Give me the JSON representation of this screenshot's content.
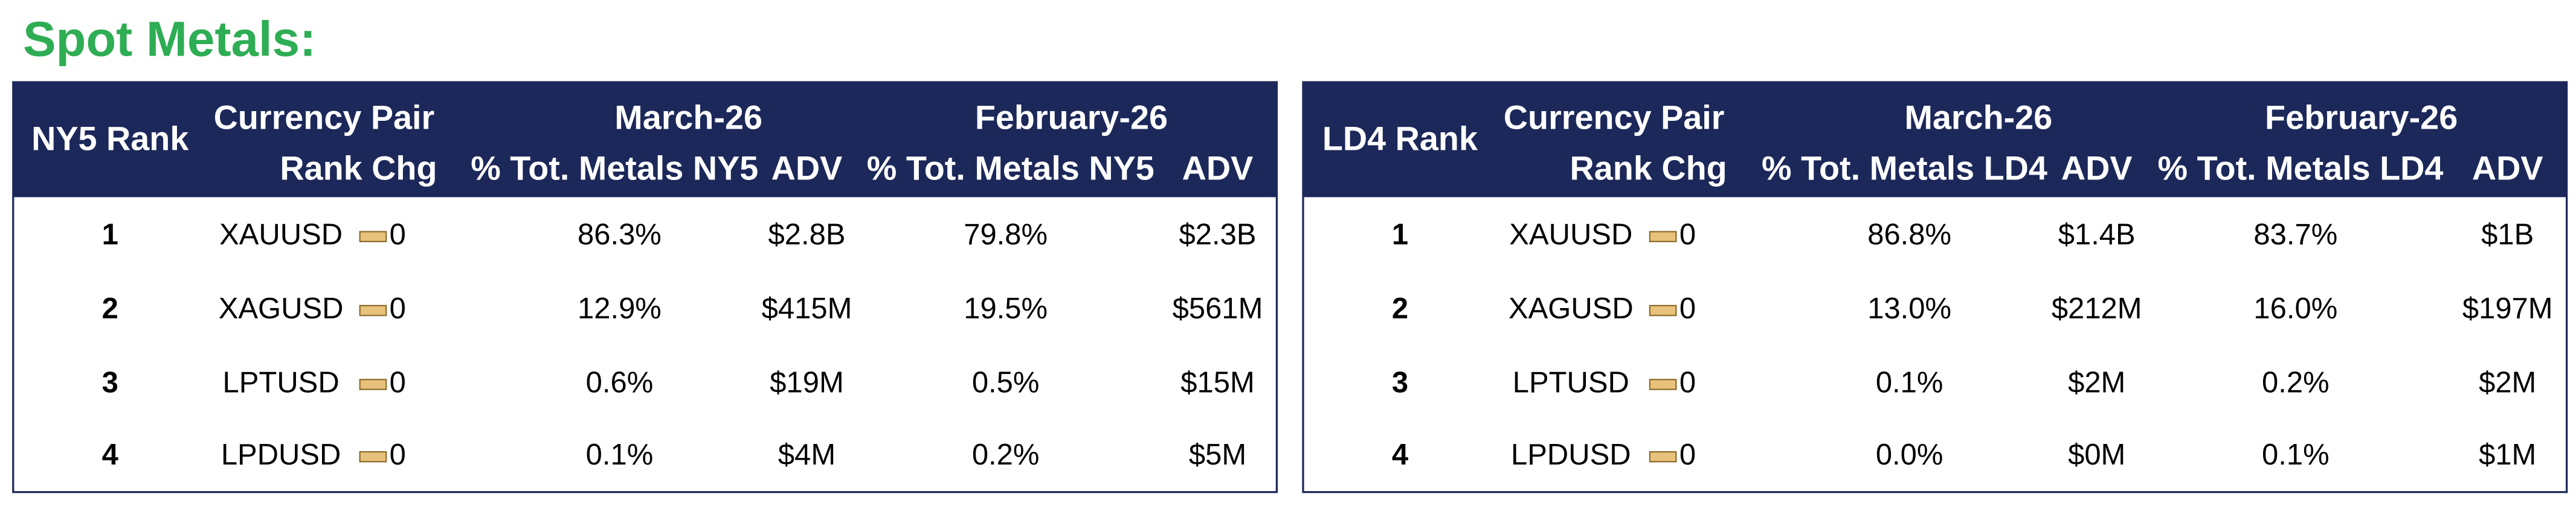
{
  "title": "Spot Metals:",
  "tables": [
    {
      "headers": {
        "rank": "NY5 Rank",
        "pair": "Currency Pair",
        "rank_chg": "Rank Chg",
        "period1": "March-26",
        "period2": "February-26",
        "share1": "% Tot. Metals NY5",
        "adv1": "ADV",
        "share2": "% Tot. Metals NY5",
        "adv2": "ADV"
      },
      "rows": [
        [
          "1",
          "XAUUSD",
          "0",
          "86.3%",
          "$2.8B",
          "79.8%",
          "$2.3B"
        ],
        [
          "2",
          "XAGUSD",
          "0",
          "12.9%",
          "$415M",
          "19.5%",
          "$561M"
        ],
        [
          "3",
          "LPTUSD",
          "0",
          "0.6%",
          "$19M",
          "0.5%",
          "$15M"
        ],
        [
          "4",
          "LPDUSD",
          "0",
          "0.1%",
          "$4M",
          "0.2%",
          "$5M"
        ]
      ]
    },
    {
      "headers": {
        "rank": "LD4 Rank",
        "pair": "Currency Pair",
        "rank_chg": "Rank Chg",
        "period1": "March-26",
        "period2": "February-26",
        "share1": "% Tot. Metals LD4",
        "adv1": "ADV",
        "share2": "% Tot. Metals LD4",
        "adv2": "ADV"
      },
      "rows": [
        [
          "1",
          "XAUUSD",
          "0",
          "86.8%",
          "$1.4B",
          "83.7%",
          "$1B"
        ],
        [
          "2",
          "XAGUSD",
          "0",
          "13.0%",
          "$212M",
          "16.0%",
          "$197M"
        ],
        [
          "3",
          "LPTUSD",
          "0",
          "0.1%",
          "$2M",
          "0.2%",
          "$2M"
        ],
        [
          "4",
          "LPDUSD",
          "0",
          "0.0%",
          "$0M",
          "0.1%",
          "$1M"
        ]
      ]
    }
  ]
}
